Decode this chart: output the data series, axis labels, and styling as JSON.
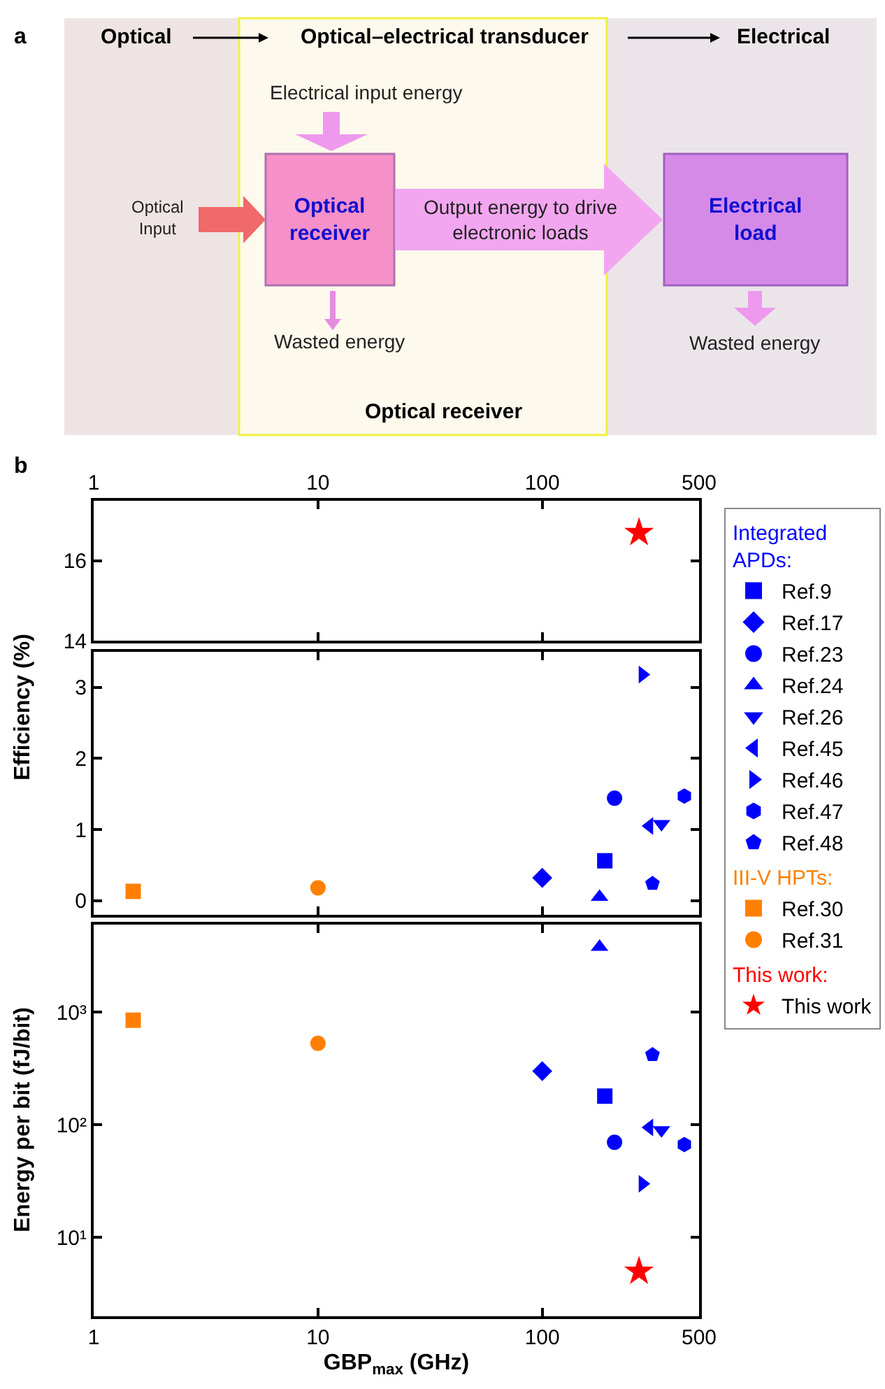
{
  "chart_data": [
    {
      "type": "other",
      "title": "a",
      "annotations": [
        "Optical",
        "Optical–electrical transducer",
        "Electrical",
        "Electrical input energy",
        "Optical Input",
        "Optical receiver",
        "Output energy to drive electronic loads",
        "Electrical load",
        "Wasted energy",
        "Wasted energy",
        "Optical receiver"
      ]
    },
    {
      "type": "scatter",
      "annotations": [
        "b"
      ],
      "log": "x",
      "xlim": [
        1,
        500
      ],
      "xticks": [
        1,
        10,
        100,
        500
      ],
      "ylim": [
        14,
        17.5
      ],
      "yticks": [
        14,
        16
      ],
      "series": [
        {
          "color": "#ff0000",
          "marker": "star",
          "x": [
            270
          ],
          "values": [
            16.7
          ]
        }
      ]
    },
    {
      "type": "scatter",
      "log": "x",
      "xlim": [
        1,
        500
      ],
      "xticks": [
        1,
        10,
        100,
        500
      ],
      "ylim": [
        -0.2,
        3.5
      ],
      "yticks": [
        0,
        1,
        2,
        3
      ],
      "tick_labels": "y",
      "ylabel": "Efficiency (%)",
      "legend": "right",
      "series": [
        {
          "name": "Ref.9",
          "color": "#0000ff",
          "marker": "square",
          "x": [
            190
          ],
          "values": [
            0.56
          ]
        },
        {
          "name": "Ref.17",
          "color": "#0000ff",
          "marker": "diamond",
          "x": [
            100
          ],
          "values": [
            0.32
          ]
        },
        {
          "name": "Ref.23",
          "color": "#0000ff",
          "marker": "circle",
          "x": [
            210
          ],
          "values": [
            1.44
          ]
        },
        {
          "name": "Ref.24",
          "color": "#0000ff",
          "marker": "triangle",
          "x": [
            180
          ],
          "values": [
            0.05
          ]
        },
        {
          "name": "Ref.26",
          "color": "#0000ff",
          "marker": "triangle-down",
          "x": [
            340
          ],
          "values": [
            1.08
          ]
        },
        {
          "name": "Ref.45",
          "color": "#0000ff",
          "marker": "triangle-left",
          "x": [
            300
          ],
          "values": [
            1.05
          ]
        },
        {
          "name": "Ref.46",
          "color": "#0000ff",
          "marker": "triangle-right",
          "x": [
            280
          ],
          "values": [
            3.18
          ]
        },
        {
          "name": "Ref.47",
          "color": "#0000ff",
          "x": [
            430
          ],
          "values": [
            1.47
          ]
        },
        {
          "name": "Ref.48",
          "color": "#0000ff",
          "x": [
            310
          ],
          "values": [
            0.24
          ]
        },
        {
          "name": "Ref.30",
          "color": "#ff8000",
          "marker": "square",
          "x": [
            1.5
          ],
          "values": [
            0.13
          ]
        },
        {
          "name": "Ref.31",
          "color": "#ff8000",
          "marker": "circle",
          "x": [
            10
          ],
          "values": [
            0.18
          ]
        }
      ]
    },
    {
      "type": "scatter",
      "log": "xy",
      "xlim": [
        1,
        500
      ],
      "xticks": [
        1,
        10,
        100,
        500
      ],
      "ylim": [
        2,
        6000
      ],
      "yticks": [
        {
          "value": 10,
          "label": "10¹"
        },
        {
          "value": 100,
          "label": "10²"
        },
        {
          "value": 1000,
          "label": "10³"
        }
      ],
      "xlabel": "GBP$_{max}$ (GHz)",
      "ylabel": "Energy per bit (fJ/bit)",
      "legend": "right",
      "legend_title": [
        "Integrated APDs:",
        "III-V HPTs:",
        "This work:"
      ],
      "series": [
        {
          "name": "Ref.9",
          "color": "#0000ff",
          "marker": "square",
          "x": [
            190
          ],
          "values": [
            180
          ]
        },
        {
          "name": "Ref.17",
          "color": "#0000ff",
          "marker": "diamond",
          "x": [
            100
          ],
          "values": [
            300
          ]
        },
        {
          "name": "Ref.23",
          "color": "#0000ff",
          "marker": "circle",
          "x": [
            210
          ],
          "values": [
            70
          ]
        },
        {
          "name": "Ref.24",
          "color": "#0000ff",
          "marker": "triangle",
          "x": [
            180
          ],
          "values": [
            3800
          ]
        },
        {
          "name": "Ref.26",
          "color": "#0000ff",
          "marker": "triangle-down",
          "x": [
            340
          ],
          "values": [
            90
          ]
        },
        {
          "name": "Ref.45",
          "color": "#0000ff",
          "marker": "triangle-left",
          "x": [
            300
          ],
          "values": [
            95
          ]
        },
        {
          "name": "Ref.46",
          "color": "#0000ff",
          "marker": "triangle-right",
          "x": [
            280
          ],
          "values": [
            30
          ]
        },
        {
          "name": "Ref.47",
          "color": "#0000ff",
          "x": [
            430
          ],
          "values": [
            67
          ]
        },
        {
          "name": "Ref.48",
          "color": "#0000ff",
          "x": [
            310
          ],
          "values": [
            420
          ]
        },
        {
          "name": "Ref.30",
          "color": "#ff8000",
          "marker": "square",
          "x": [
            1.5
          ],
          "values": [
            850
          ]
        },
        {
          "name": "Ref.31",
          "color": "#ff8000",
          "marker": "circle",
          "x": [
            10
          ],
          "values": [
            530
          ]
        },
        {
          "name": "This work",
          "color": "#ff0000",
          "marker": "star",
          "x": [
            270
          ],
          "values": [
            5
          ]
        }
      ]
    }
  ]
}
